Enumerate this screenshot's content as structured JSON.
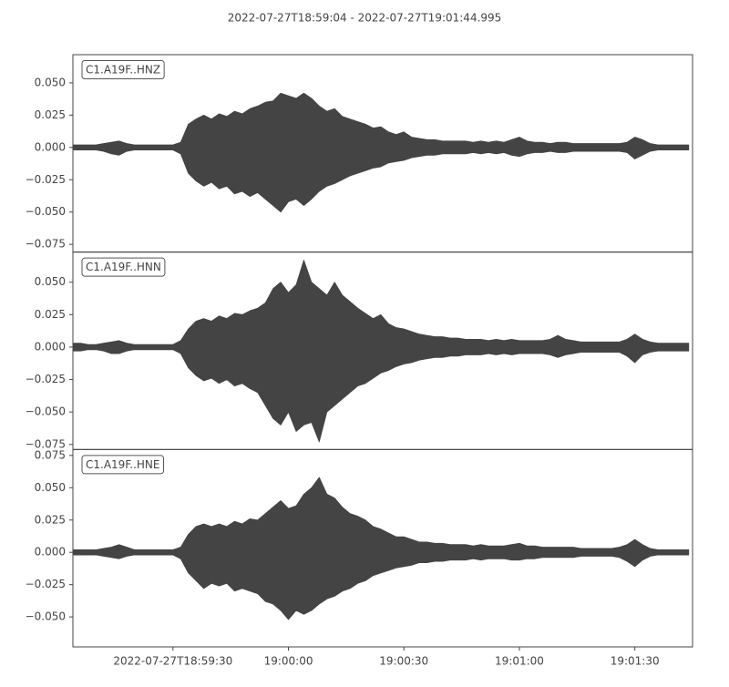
{
  "chart_data": {
    "type": "waveform",
    "title": "2022-07-27T18:59:04  -  2022-07-27T19:01:44.995",
    "xlim": [
      "18:59:04",
      "19:01:44.995"
    ],
    "xticks": [
      {
        "value": "18:59:30",
        "label": "2022-07-27T18:59:30"
      },
      "19:00:00",
      "19:00:30",
      "19:01:00",
      "19:01:30"
    ],
    "color": "#444444",
    "x": [
      "18:59:04",
      "18:59:06",
      "18:59:08",
      "18:59:10",
      "18:59:12",
      "18:59:14",
      "18:59:16",
      "18:59:18",
      "18:59:20",
      "18:59:22",
      "18:59:24",
      "18:59:26",
      "18:59:28",
      "18:59:30",
      "18:59:32",
      "18:59:34",
      "18:59:36",
      "18:59:38",
      "18:59:40",
      "18:59:42",
      "18:59:44",
      "18:59:46",
      "18:59:48",
      "18:59:50",
      "18:59:52",
      "18:59:54",
      "18:59:56",
      "18:59:58",
      "19:00:00",
      "19:00:02",
      "19:00:04",
      "19:00:06",
      "19:00:08",
      "19:00:10",
      "19:00:12",
      "19:00:14",
      "19:00:16",
      "19:00:18",
      "19:00:20",
      "19:00:22",
      "19:00:24",
      "19:00:26",
      "19:00:28",
      "19:00:30",
      "19:00:32",
      "19:00:34",
      "19:00:36",
      "19:00:38",
      "19:00:40",
      "19:00:42",
      "19:00:44",
      "19:00:46",
      "19:00:48",
      "19:00:50",
      "19:00:52",
      "19:00:54",
      "19:00:56",
      "19:00:58",
      "19:01:00",
      "19:01:02",
      "19:01:04",
      "19:01:06",
      "19:01:08",
      "19:01:10",
      "19:01:12",
      "19:01:14",
      "19:01:16",
      "19:01:18",
      "19:01:20",
      "19:01:22",
      "19:01:24",
      "19:01:26",
      "19:01:28",
      "19:01:30",
      "19:01:32",
      "19:01:34",
      "19:01:36",
      "19:01:38",
      "19:01:40",
      "19:01:42",
      "19:01:44"
    ],
    "panels": [
      {
        "label": "C1.A19F..HNZ",
        "ylim": [
          -0.081,
          0.0718
        ],
        "yticks": [
          {
            "value": -0.075,
            "label": "−0.075"
          },
          {
            "value": -0.05,
            "label": "−0.050"
          },
          {
            "value": -0.025,
            "label": "−0.025"
          },
          {
            "value": 0,
            "label": "0.000"
          },
          {
            "value": 0.025,
            "label": "0.025"
          },
          {
            "value": 0.05,
            "label": "0.050"
          }
        ],
        "upper": [
          0.002,
          0.002,
          0.002,
          0.002,
          0.003,
          0.004,
          0.005,
          0.003,
          0.002,
          0.002,
          0.002,
          0.002,
          0.002,
          0.002,
          0.004,
          0.018,
          0.022,
          0.025,
          0.022,
          0.026,
          0.024,
          0.028,
          0.026,
          0.03,
          0.032,
          0.035,
          0.036,
          0.042,
          0.04,
          0.038,
          0.042,
          0.038,
          0.032,
          0.028,
          0.03,
          0.024,
          0.022,
          0.02,
          0.018,
          0.015,
          0.016,
          0.012,
          0.01,
          0.012,
          0.008,
          0.007,
          0.006,
          0.006,
          0.005,
          0.005,
          0.005,
          0.005,
          0.004,
          0.005,
          0.004,
          0.005,
          0.004,
          0.006,
          0.008,
          0.005,
          0.004,
          0.004,
          0.003,
          0.004,
          0.004,
          0.003,
          0.003,
          0.003,
          0.003,
          0.003,
          0.003,
          0.003,
          0.004,
          0.008,
          0.006,
          0.003,
          0.002,
          0.002,
          0.002,
          0.002,
          0.002
        ],
        "lower": [
          -0.002,
          -0.002,
          -0.002,
          -0.002,
          -0.003,
          -0.005,
          -0.006,
          -0.003,
          -0.002,
          -0.002,
          -0.002,
          -0.002,
          -0.002,
          -0.002,
          -0.005,
          -0.02,
          -0.026,
          -0.03,
          -0.027,
          -0.032,
          -0.03,
          -0.036,
          -0.034,
          -0.038,
          -0.035,
          -0.04,
          -0.045,
          -0.05,
          -0.042,
          -0.04,
          -0.045,
          -0.04,
          -0.034,
          -0.03,
          -0.028,
          -0.025,
          -0.022,
          -0.02,
          -0.018,
          -0.016,
          -0.015,
          -0.012,
          -0.011,
          -0.01,
          -0.008,
          -0.007,
          -0.006,
          -0.006,
          -0.005,
          -0.005,
          -0.005,
          -0.005,
          -0.004,
          -0.005,
          -0.004,
          -0.005,
          -0.004,
          -0.006,
          -0.007,
          -0.005,
          -0.004,
          -0.004,
          -0.003,
          -0.004,
          -0.004,
          -0.003,
          -0.003,
          -0.003,
          -0.003,
          -0.003,
          -0.003,
          -0.003,
          -0.004,
          -0.009,
          -0.006,
          -0.003,
          -0.002,
          -0.002,
          -0.002,
          -0.002,
          -0.002
        ]
      },
      {
        "label": "C1.A19F..HNN",
        "ylim": [
          -0.0789,
          0.0732
        ],
        "yticks": [
          {
            "value": -0.075,
            "label": "−0.075"
          },
          {
            "value": -0.05,
            "label": "−0.050"
          },
          {
            "value": -0.025,
            "label": "−0.025"
          },
          {
            "value": 0,
            "label": "0.000"
          },
          {
            "value": 0.025,
            "label": "0.025"
          },
          {
            "value": 0.05,
            "label": "0.050"
          }
        ],
        "upper": [
          0.003,
          0.003,
          0.002,
          0.002,
          0.003,
          0.004,
          0.005,
          0.003,
          0.002,
          0.002,
          0.002,
          0.002,
          0.002,
          0.002,
          0.005,
          0.014,
          0.02,
          0.022,
          0.02,
          0.024,
          0.022,
          0.026,
          0.025,
          0.028,
          0.03,
          0.034,
          0.045,
          0.05,
          0.042,
          0.048,
          0.067,
          0.05,
          0.045,
          0.04,
          0.05,
          0.04,
          0.035,
          0.03,
          0.026,
          0.022,
          0.025,
          0.018,
          0.015,
          0.014,
          0.012,
          0.01,
          0.009,
          0.008,
          0.008,
          0.007,
          0.007,
          0.006,
          0.006,
          0.006,
          0.005,
          0.006,
          0.005,
          0.006,
          0.005,
          0.005,
          0.005,
          0.005,
          0.006,
          0.009,
          0.006,
          0.005,
          0.004,
          0.004,
          0.004,
          0.004,
          0.004,
          0.004,
          0.006,
          0.01,
          0.006,
          0.004,
          0.003,
          0.003,
          0.003,
          0.003,
          0.003
        ],
        "lower": [
          -0.003,
          -0.003,
          -0.002,
          -0.002,
          -0.003,
          -0.005,
          -0.005,
          -0.003,
          -0.002,
          -0.002,
          -0.002,
          -0.002,
          -0.002,
          -0.002,
          -0.005,
          -0.016,
          -0.022,
          -0.026,
          -0.024,
          -0.028,
          -0.025,
          -0.03,
          -0.028,
          -0.032,
          -0.035,
          -0.045,
          -0.055,
          -0.06,
          -0.05,
          -0.065,
          -0.06,
          -0.058,
          -0.073,
          -0.05,
          -0.045,
          -0.04,
          -0.035,
          -0.03,
          -0.028,
          -0.024,
          -0.02,
          -0.018,
          -0.015,
          -0.013,
          -0.012,
          -0.01,
          -0.009,
          -0.008,
          -0.008,
          -0.007,
          -0.007,
          -0.006,
          -0.006,
          -0.006,
          -0.005,
          -0.006,
          -0.005,
          -0.006,
          -0.005,
          -0.005,
          -0.005,
          -0.005,
          -0.006,
          -0.008,
          -0.006,
          -0.005,
          -0.004,
          -0.004,
          -0.004,
          -0.004,
          -0.004,
          -0.004,
          -0.007,
          -0.012,
          -0.006,
          -0.004,
          -0.003,
          -0.003,
          -0.003,
          -0.003,
          -0.003
        ]
      },
      {
        "label": "C1.A19F..HNE",
        "ylim": [
          -0.0732,
          0.0796
        ],
        "yticks": [
          {
            "value": -0.05,
            "label": "−0.050"
          },
          {
            "value": -0.025,
            "label": "−0.025"
          },
          {
            "value": 0,
            "label": "0.000"
          },
          {
            "value": 0.025,
            "label": "0.025"
          },
          {
            "value": 0.05,
            "label": "0.050"
          },
          {
            "value": 0.075,
            "label": "0.075"
          }
        ],
        "upper": [
          0.002,
          0.002,
          0.002,
          0.002,
          0.003,
          0.004,
          0.006,
          0.004,
          0.002,
          0.002,
          0.002,
          0.002,
          0.002,
          0.002,
          0.004,
          0.014,
          0.02,
          0.022,
          0.02,
          0.022,
          0.02,
          0.024,
          0.022,
          0.026,
          0.025,
          0.03,
          0.035,
          0.04,
          0.034,
          0.036,
          0.045,
          0.05,
          0.058,
          0.045,
          0.042,
          0.035,
          0.03,
          0.028,
          0.025,
          0.02,
          0.018,
          0.015,
          0.012,
          0.012,
          0.01,
          0.008,
          0.008,
          0.007,
          0.007,
          0.006,
          0.006,
          0.006,
          0.005,
          0.006,
          0.005,
          0.005,
          0.005,
          0.006,
          0.007,
          0.005,
          0.005,
          0.004,
          0.004,
          0.004,
          0.004,
          0.004,
          0.003,
          0.003,
          0.003,
          0.003,
          0.003,
          0.004,
          0.006,
          0.01,
          0.006,
          0.003,
          0.002,
          0.002,
          0.002,
          0.002,
          0.002
        ],
        "lower": [
          -0.002,
          -0.002,
          -0.002,
          -0.002,
          -0.003,
          -0.004,
          -0.005,
          -0.003,
          -0.002,
          -0.002,
          -0.002,
          -0.002,
          -0.002,
          -0.002,
          -0.005,
          -0.016,
          -0.022,
          -0.028,
          -0.024,
          -0.026,
          -0.024,
          -0.03,
          -0.028,
          -0.03,
          -0.032,
          -0.038,
          -0.04,
          -0.045,
          -0.052,
          -0.045,
          -0.048,
          -0.045,
          -0.04,
          -0.036,
          -0.034,
          -0.03,
          -0.028,
          -0.024,
          -0.022,
          -0.018,
          -0.016,
          -0.014,
          -0.012,
          -0.011,
          -0.01,
          -0.008,
          -0.008,
          -0.007,
          -0.007,
          -0.006,
          -0.006,
          -0.006,
          -0.005,
          -0.006,
          -0.005,
          -0.005,
          -0.005,
          -0.006,
          -0.006,
          -0.005,
          -0.005,
          -0.004,
          -0.004,
          -0.004,
          -0.004,
          -0.004,
          -0.003,
          -0.003,
          -0.003,
          -0.003,
          -0.003,
          -0.004,
          -0.007,
          -0.011,
          -0.006,
          -0.003,
          -0.002,
          -0.002,
          -0.002,
          -0.002,
          -0.002
        ]
      }
    ]
  }
}
